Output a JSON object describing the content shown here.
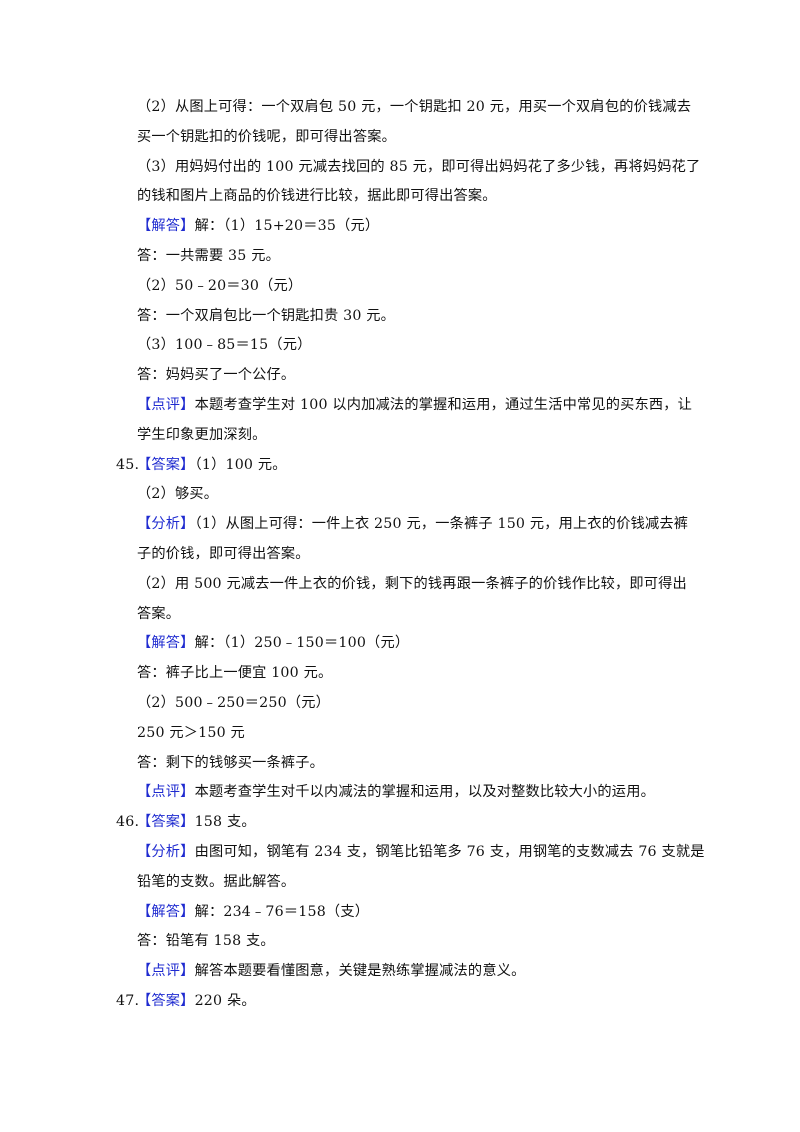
{
  "document": {
    "label_color": "#1f2bd0",
    "lines": [
      {
        "text": "（2）从图上可得：一个双肩包 50 元，一个钥匙扣 20 元，用买一个双肩包的价钱减去"
      },
      {
        "text": "买一个钥匙扣的价钱呢，即可得出答案。"
      },
      {
        "text": "（3）用妈妈付出的 100 元减去找回的 85 元，即可得出妈妈花了多少钱，再将妈妈花了"
      },
      {
        "text": "的钱和图片上商品的价钱进行比较，据此即可得出答案。"
      },
      {
        "label": "【解答】",
        "text": "解：（1）15+20＝35（元）"
      },
      {
        "text": "答：一共需要 35 元。"
      },
      {
        "text": "（2）50﹣20＝30（元）"
      },
      {
        "text": "答：一个双肩包比一个钥匙扣贵 30 元。"
      },
      {
        "text": "（3）100﹣85＝15（元）"
      },
      {
        "text": "答：妈妈买了一个公仔。"
      },
      {
        "label": "【点评】",
        "text": "本题考查学生对 100 以内加减法的掌握和运用，通过生活中常见的买东西，让"
      },
      {
        "text": "学生印象更加深刻。"
      },
      {
        "num": "45.",
        "label": "【答案】",
        "text": "（1）100 元。"
      },
      {
        "text": "（2）够买。"
      },
      {
        "label": "【分析】",
        "text": "（1）从图上可得：一件上衣 250 元，一条裤子 150 元，用上衣的价钱减去裤"
      },
      {
        "text": "子的价钱，即可得出答案。"
      },
      {
        "text": "（2）用 500 元减去一件上衣的价钱，剩下的钱再跟一条裤子的价钱作比较，即可得出"
      },
      {
        "text": "答案。"
      },
      {
        "label": "【解答】",
        "text": "解：（1）250﹣150＝100（元）"
      },
      {
        "text": "答：裤子比上一便宜 100 元。"
      },
      {
        "text": "（2）500﹣250＝250（元）"
      },
      {
        "text": "250 元＞150 元"
      },
      {
        "text": "答：剩下的钱够买一条裤子。"
      },
      {
        "label": "【点评】",
        "text": "本题考查学生对千以内减法的掌握和运用，以及对整数比较大小的运用。"
      },
      {
        "num": "46.",
        "label": "【答案】",
        "text": "158 支。"
      },
      {
        "label": "【分析】",
        "text": "由图可知，钢笔有 234 支，钢笔比铅笔多 76 支，用钢笔的支数减去 76 支就是"
      },
      {
        "text": "铅笔的支数。据此解答。"
      },
      {
        "label": "【解答】",
        "text": "解：234﹣76＝158（支）"
      },
      {
        "text": "答：铅笔有 158 支。"
      },
      {
        "label": "【点评】",
        "text": "解答本题要看懂图意，关键是熟练掌握减法的意义。"
      },
      {
        "num": "47.",
        "label": "【答案】",
        "text": "220 朵。"
      }
    ]
  }
}
